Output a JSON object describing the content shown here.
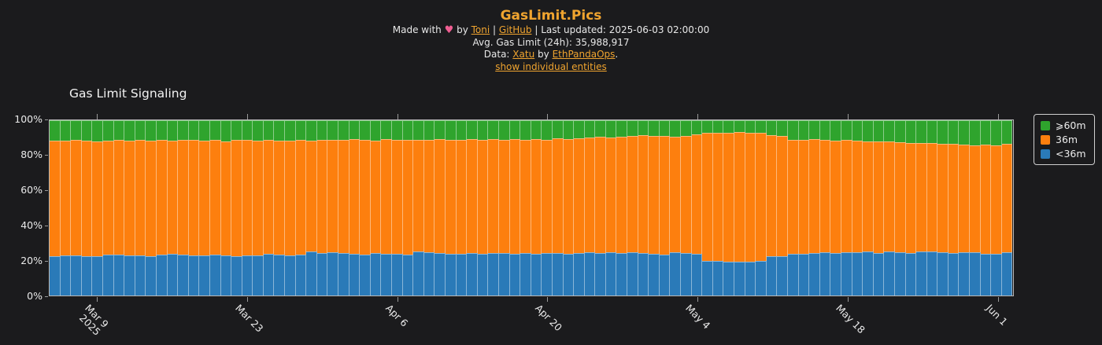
{
  "colors": {
    "background": "#1b1b1d",
    "accent_orange": "#f0a42f",
    "text": "#e8e8e8",
    "heart_pink": "#ef5e92",
    "axis_spine": "#b8b8b8",
    "tick": "#9a9a9a",
    "green": "#2fa42d",
    "orange": "#fd7f0e",
    "blue": "#2a7ab8"
  },
  "header": {
    "title": "GasLimit.Pics",
    "made_with": "Made with",
    "heart": "♥",
    "by": "by",
    "author_link": "Toni",
    "sep1": "|",
    "github_link": "GitHub",
    "sep2": "|",
    "last_updated": "Last updated: 2025-06-03 02:00:00",
    "avg_gas_limit": "Avg. Gas Limit (24h): 35,988,917",
    "data_prefix": "Data:",
    "data_link1": "Xatu",
    "data_by": "by",
    "data_link2": "EthPandaOps",
    "data_suffix": ".",
    "entities_link": "show individual entities"
  },
  "chart": {
    "title": "Gas Limit Signaling"
  },
  "chart_data": {
    "type": "bar",
    "stacked": true,
    "orientation": "vertical",
    "title": "Gas Limit Signaling",
    "x_unit": "day",
    "x_start_date": "2025-03-05",
    "x_end_date": "2025-06-02",
    "num_bars": 90,
    "ylim": [
      0,
      100
    ],
    "y_tick_labels": [
      "0%",
      "20%",
      "40%",
      "60%",
      "80%",
      "100%"
    ],
    "x_ticks": [
      {
        "index": 4,
        "label": "Mar 9",
        "sublabel": "2025"
      },
      {
        "index": 18,
        "label": "Mar 23"
      },
      {
        "index": 32,
        "label": "Apr 6"
      },
      {
        "index": 46,
        "label": "Apr 20"
      },
      {
        "index": 60,
        "label": "May 4"
      },
      {
        "index": 74,
        "label": "May 18"
      },
      {
        "index": 88,
        "label": "Jun 1"
      }
    ],
    "legend": {
      "position": "outside-right",
      "entries": [
        {
          "label": "⩾60m",
          "color": "#2fa42d"
        },
        {
          "label": "36m",
          "color": "#fd7f0e"
        },
        {
          "label": "<36m",
          "color": "#2a7ab8"
        }
      ]
    },
    "series": [
      {
        "name": "<36m",
        "color": "#2a7ab8",
        "stack_order": "bottom",
        "unit": "percent",
        "values": [
          22.5,
          22.8,
          23.0,
          22.6,
          22.4,
          23.2,
          23.5,
          23.0,
          22.7,
          22.5,
          23.4,
          23.8,
          23.2,
          22.9,
          23.0,
          23.3,
          22.8,
          22.6,
          22.9,
          23.1,
          23.6,
          23.2,
          23.0,
          23.4,
          25.0,
          24.3,
          24.6,
          24.2,
          23.8,
          23.5,
          24.0,
          23.6,
          23.9,
          23.4,
          25.2,
          24.6,
          24.0,
          23.7,
          23.9,
          24.1,
          23.6,
          24.3,
          24.0,
          23.8,
          24.2,
          23.9,
          24.1,
          24.4,
          23.8,
          24.0,
          24.5,
          24.2,
          24.8,
          24.3,
          24.6,
          24.1,
          23.8,
          23.2,
          24.5,
          24.0,
          23.7,
          19.9,
          19.6,
          19.4,
          19.5,
          19.3,
          19.6,
          22.3,
          22.6,
          23.9,
          23.7,
          24.4,
          24.6,
          24.2,
          24.8,
          24.5,
          24.9,
          24.4,
          25.1,
          24.7,
          24.3,
          24.9,
          25.2,
          24.6,
          24.4,
          24.8,
          24.5,
          23.9,
          23.7,
          24.8
        ]
      },
      {
        "name": "36m",
        "color": "#fd7f0e",
        "stack_order": "middle",
        "unit": "percent",
        "values_rule": "remainder: 100 minus (<36m) minus (⩾60m)"
      },
      {
        "name": "⩾60m",
        "color": "#2fa42d",
        "stack_order": "top",
        "unit": "percent",
        "values": [
          11.5,
          11.8,
          11.2,
          11.5,
          12.0,
          11.6,
          11.4,
          11.8,
          11.3,
          11.6,
          11.2,
          11.5,
          11.0,
          11.4,
          11.7,
          11.2,
          11.9,
          11.4,
          11.1,
          11.6,
          11.3,
          11.8,
          11.5,
          11.2,
          11.6,
          11.3,
          11.0,
          11.4,
          10.8,
          11.2,
          11.5,
          10.9,
          11.3,
          11.0,
          11.4,
          11.1,
          10.7,
          11.0,
          11.3,
          10.8,
          11.1,
          10.9,
          11.2,
          10.6,
          11.0,
          10.8,
          11.1,
          10.5,
          10.9,
          10.3,
          10.0,
          9.6,
          9.9,
          9.4,
          9.0,
          8.7,
          8.9,
          9.0,
          9.2,
          8.8,
          8.1,
          7.3,
          7.1,
          7.0,
          6.9,
          7.2,
          7.0,
          8.4,
          8.8,
          11.0,
          11.3,
          10.8,
          11.1,
          11.5,
          11.2,
          11.6,
          11.9,
          12.2,
          12.0,
          12.4,
          12.8,
          13.1,
          12.9,
          13.3,
          13.6,
          14.0,
          14.2,
          13.8,
          14.5,
          13.3
        ]
      }
    ]
  }
}
